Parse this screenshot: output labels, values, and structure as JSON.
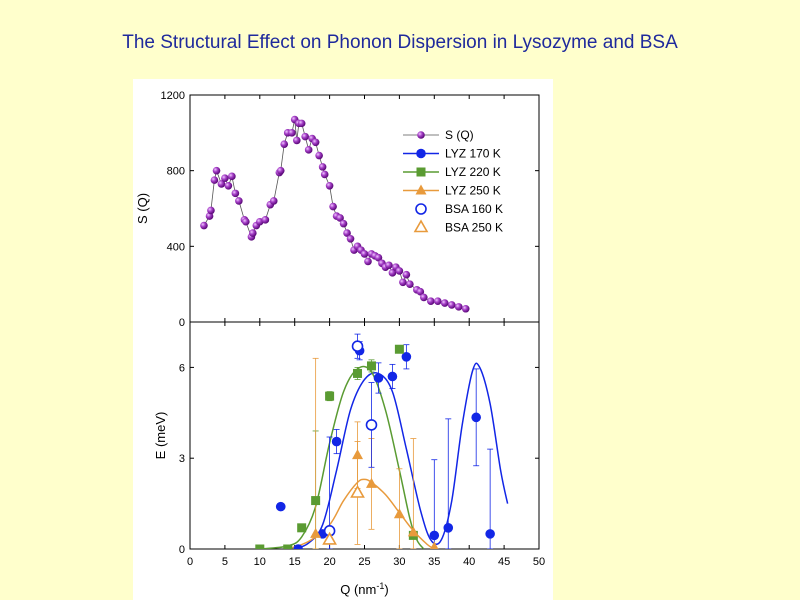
{
  "title": "The Structural Effect on Phonon Dispersion in Lysozyme and BSA",
  "chart_data": [
    {
      "type": "scatter",
      "xlabel": "Q (nm",
      "xlabel_sup": "-1",
      "xlabel_end": ")",
      "ylabel": "S (Q)",
      "xlim": [
        0,
        50
      ],
      "ylim": [
        0,
        1200
      ],
      "xticks": [
        "0",
        "5",
        "10",
        "15",
        "20",
        "25",
        "30",
        "35",
        "40",
        "45",
        "50"
      ],
      "yticks": [
        "0",
        "400",
        "800",
        "1200"
      ],
      "series": [
        {
          "name": "S (Q)",
          "color": "#8b1fa6",
          "marker": "sphere",
          "points": [
            [
              2.0,
              510
            ],
            [
              2.8,
              560
            ],
            [
              3.0,
              590
            ],
            [
              3.5,
              750
            ],
            [
              3.8,
              800
            ],
            [
              4.5,
              730
            ],
            [
              5.0,
              760
            ],
            [
              5.5,
              720
            ],
            [
              6.0,
              770
            ],
            [
              6.5,
              680
            ],
            [
              7.0,
              640
            ],
            [
              7.8,
              540
            ],
            [
              8.0,
              530
            ],
            [
              8.8,
              450
            ],
            [
              9.0,
              470
            ],
            [
              9.5,
              510
            ],
            [
              10.0,
              530
            ],
            [
              10.8,
              540
            ],
            [
              11.5,
              620
            ],
            [
              12.0,
              640
            ],
            [
              12.8,
              790
            ],
            [
              13.0,
              800
            ],
            [
              13.5,
              940
            ],
            [
              14.0,
              1000
            ],
            [
              14.6,
              1000
            ],
            [
              15.0,
              1070
            ],
            [
              15.3,
              960
            ],
            [
              15.6,
              1050
            ],
            [
              16.0,
              1050
            ],
            [
              16.5,
              980
            ],
            [
              17.0,
              910
            ],
            [
              17.5,
              970
            ],
            [
              18.0,
              950
            ],
            [
              18.5,
              880
            ],
            [
              19.0,
              820
            ],
            [
              19.3,
              780
            ],
            [
              20.0,
              720
            ],
            [
              20.5,
              610
            ],
            [
              21.0,
              560
            ],
            [
              21.5,
              550
            ],
            [
              22.0,
              520
            ],
            [
              22.5,
              470
            ],
            [
              23.0,
              440
            ],
            [
              23.5,
              380
            ],
            [
              24.0,
              400
            ],
            [
              24.5,
              380
            ],
            [
              25.0,
              360
            ],
            [
              25.5,
              320
            ],
            [
              26.0,
              360
            ],
            [
              26.5,
              350
            ],
            [
              27.0,
              340
            ],
            [
              27.5,
              310
            ],
            [
              28.0,
              290
            ],
            [
              28.5,
              300
            ],
            [
              29.0,
              260
            ],
            [
              29.5,
              290
            ],
            [
              30.0,
              270
            ],
            [
              30.5,
              210
            ],
            [
              31.0,
              250
            ],
            [
              31.5,
              200
            ],
            [
              32.5,
              170
            ],
            [
              33.0,
              160
            ],
            [
              33.5,
              130
            ],
            [
              34.5,
              110
            ],
            [
              35.5,
              110
            ],
            [
              36.5,
              100
            ],
            [
              37.5,
              90
            ],
            [
              38.5,
              80
            ],
            [
              39.5,
              70
            ]
          ]
        }
      ],
      "legend": {
        "placement": "top-right",
        "entries": [
          {
            "label": "S (Q)",
            "color": "#8b1fa6",
            "marker": "sphere",
            "line": true
          },
          {
            "label": "LYZ 170 K",
            "color": "#1226e6",
            "marker": "circle",
            "line": true
          },
          {
            "label": "LYZ 220 K",
            "color": "#5a9b32",
            "marker": "square",
            "line": true
          },
          {
            "label": "LYZ 250 K",
            "color": "#e89a3c",
            "marker": "triangle",
            "line": true
          },
          {
            "label": "BSA 160 K",
            "color": "#1226e6",
            "marker": "open-circle",
            "line": false
          },
          {
            "label": "BSA 250 K",
            "color": "#e89a3c",
            "marker": "open-triangle",
            "line": false
          }
        ]
      }
    },
    {
      "type": "scatter",
      "xlabel": "Q (nm",
      "xlabel_sup": "-1",
      "xlabel_end": ")",
      "ylabel": "E (meV)",
      "xlim": [
        0,
        50
      ],
      "ylim": [
        0,
        7.5
      ],
      "xticks": [
        "0",
        "5",
        "10",
        "15",
        "20",
        "25",
        "30",
        "35",
        "40",
        "45",
        "50"
      ],
      "yticks": [
        "0",
        "3",
        "6"
      ],
      "series": [
        {
          "name": "LYZ 170 K",
          "color": "#1226e6",
          "marker": "circle",
          "points": [
            [
              13,
              1.4
            ],
            [
              15.5,
              0.0
            ],
            [
              19,
              0.5
            ],
            [
              21,
              3.55
            ],
            [
              24.3,
              6.55
            ],
            [
              27,
              5.65
            ],
            [
              29,
              5.7
            ],
            [
              31,
              6.35
            ],
            [
              35,
              0.45
            ],
            [
              37,
              0.7
            ],
            [
              41,
              4.35
            ],
            [
              43,
              0.5
            ]
          ],
          "errors": [
            [
              13,
              0
            ],
            [
              15.5,
              0
            ],
            [
              19,
              0
            ],
            [
              21,
              0.4
            ],
            [
              24.3,
              0.3
            ],
            [
              27,
              0.5
            ],
            [
              29,
              0.4
            ],
            [
              31,
              0.4
            ],
            [
              35,
              2.5
            ],
            [
              37,
              3.6
            ],
            [
              41,
              1.6
            ],
            [
              43,
              2.8
            ]
          ],
          "curve": [
            [
              15,
              0.0
            ],
            [
              17,
              0.2
            ],
            [
              19,
              0.8
            ],
            [
              21,
              2.6
            ],
            [
              23,
              4.6
            ],
            [
              25,
              5.6
            ],
            [
              27,
              5.8
            ],
            [
              29,
              5.2
            ],
            [
              31,
              3.3
            ],
            [
              33,
              1.3
            ],
            [
              34.5,
              0.3
            ],
            [
              36,
              0.3
            ],
            [
              37.5,
              1.6
            ],
            [
              39,
              4.1
            ],
            [
              40.5,
              5.9
            ],
            [
              41.5,
              6.0
            ],
            [
              43,
              4.8
            ],
            [
              44.5,
              2.6
            ],
            [
              45.5,
              1.5
            ]
          ]
        },
        {
          "name": "LYZ 220 K",
          "color": "#5a9b32",
          "marker": "square",
          "points": [
            [
              10,
              0.0
            ],
            [
              14,
              0.0
            ],
            [
              16,
              0.7
            ],
            [
              18,
              1.6
            ],
            [
              20,
              5.05
            ],
            [
              24,
              5.8
            ],
            [
              26,
              6.05
            ],
            [
              30,
              6.6
            ],
            [
              32,
              0.45
            ]
          ],
          "errors": [
            [
              10,
              0
            ],
            [
              14,
              0
            ],
            [
              16,
              0
            ],
            [
              18,
              2.3
            ],
            [
              20,
              0.15
            ],
            [
              24,
              0.2
            ],
            [
              26,
              0.2
            ],
            [
              30,
              0.1
            ],
            [
              32,
              0
            ]
          ],
          "curve": [
            [
              10,
              0.0
            ],
            [
              14,
              0.1
            ],
            [
              16,
              0.4
            ],
            [
              18,
              1.4
            ],
            [
              20,
              3.5
            ],
            [
              22,
              5.2
            ],
            [
              24,
              5.95
            ],
            [
              26,
              5.85
            ],
            [
              28,
              4.6
            ],
            [
              30,
              2.6
            ],
            [
              31.5,
              1.0
            ],
            [
              32.5,
              0.3
            ],
            [
              33.5,
              0.0
            ]
          ]
        },
        {
          "name": "LYZ 250 K",
          "color": "#e89a3c",
          "marker": "triangle",
          "points": [
            [
              18,
              0.5
            ],
            [
              20,
              0.3
            ],
            [
              24,
              3.1
            ],
            [
              26,
              2.15
            ],
            [
              30,
              1.15
            ],
            [
              32,
              0.55
            ],
            [
              35,
              0.05
            ]
          ],
          "errors": [
            [
              18,
              5.8
            ],
            [
              20,
              0
            ],
            [
              24,
              1.1
            ],
            [
              26,
              1.5
            ],
            [
              30,
              1.5
            ],
            [
              32,
              3.1
            ],
            [
              35,
              0
            ]
          ],
          "curve": [
            [
              14,
              0.0
            ],
            [
              17,
              0.25
            ],
            [
              20,
              0.8
            ],
            [
              22,
              1.6
            ],
            [
              24,
              2.2
            ],
            [
              25,
              2.3
            ],
            [
              26,
              2.2
            ],
            [
              28,
              1.8
            ],
            [
              30,
              1.2
            ],
            [
              32,
              0.6
            ],
            [
              34,
              0.15
            ],
            [
              35,
              0.0
            ]
          ]
        },
        {
          "name": "BSA 160 K",
          "color": "#1226e6",
          "marker": "open-circle",
          "points": [
            [
              20,
              0.6
            ],
            [
              24,
              6.7
            ],
            [
              26,
              4.1
            ]
          ],
          "errors": [
            [
              20,
              3.1
            ],
            [
              24,
              0.4
            ],
            [
              26,
              1.4
            ]
          ]
        },
        {
          "name": "BSA 250 K",
          "color": "#e89a3c",
          "marker": "open-triangle",
          "points": [
            [
              20,
              0.3
            ],
            [
              24,
              1.85
            ]
          ],
          "errors": [
            [
              20,
              0
            ],
            [
              24,
              1.7
            ]
          ]
        }
      ]
    }
  ]
}
